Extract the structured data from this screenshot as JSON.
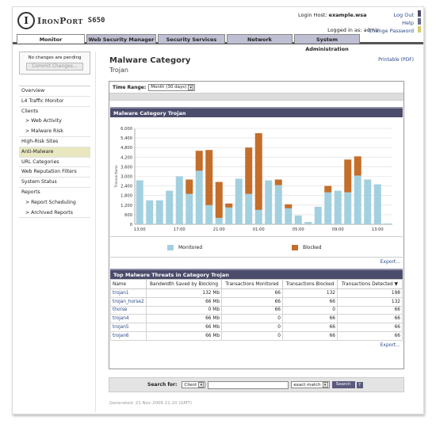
{
  "header": {
    "logo_letter": "I",
    "brand": "IronPort",
    "model": "S650",
    "login_host_label": "Login Host:",
    "login_host": "example.wsa",
    "logged_in_label": "Logged in as:",
    "logged_in_user": "admin",
    "links": {
      "logout": "Log Out",
      "help": "Help",
      "change_password": "Change Password"
    }
  },
  "tabs": [
    "Monitor",
    "Web Security Manager",
    "Security Services",
    "Network",
    "System Administration"
  ],
  "sidebar": {
    "pending_text": "No changes are pending",
    "commit_label": "Commit Changes...",
    "items": [
      {
        "label": "Overview"
      },
      {
        "label": "L4 Traffic Monitor"
      },
      {
        "label": "Clients"
      },
      {
        "label": "> Web Activity"
      },
      {
        "label": "> Malware Risk"
      },
      {
        "label": "High-Risk Sites"
      },
      {
        "label": "Anti-Malware"
      },
      {
        "label": "URL Categories"
      },
      {
        "label": "Web Reputation Filters"
      },
      {
        "label": "System Status"
      },
      {
        "label": "Reports"
      },
      {
        "label": "> Report Scheduling"
      },
      {
        "label": "> Archived Reports"
      }
    ]
  },
  "main": {
    "title": "Malware Category",
    "subtitle": "Trojan",
    "printable": "Printable (PDF)",
    "time_range_label": "Time Range:",
    "time_range_value": "Month (30 days)",
    "chart_section_title": "Malware Category Trojan",
    "table_section_title": "Top Malware Threats in Category Trojan",
    "export_label": "Export..."
  },
  "colors": {
    "monitored": "#a3d0df",
    "blocked": "#c46e2a",
    "section_head": "#4b4b6b",
    "active_nav": "#e8e7c0"
  },
  "chart_data": {
    "type": "bar",
    "stacked": true,
    "ylabel": "Transactions",
    "ylim": [
      0,
      6000
    ],
    "yticks": [
      "0",
      "600",
      "1,200",
      "1,800",
      "2,400",
      "3,000",
      "3,600",
      "4,200",
      "4,800",
      "5,400",
      "6,000"
    ],
    "xtick_labels": [
      "13:00",
      "17:00",
      "21:00",
      "01:00",
      "05:00",
      "09:00",
      "13:00"
    ],
    "grid": true,
    "legend_position": "bottom",
    "series": [
      {
        "name": "Monitored",
        "values": [
          2750,
          1500,
          1500,
          2100,
          3000,
          1900,
          3350,
          1200,
          400,
          1050,
          2850,
          1900,
          900,
          2750,
          2450,
          1000,
          550,
          150,
          1100,
          2000,
          2100,
          2000,
          3050,
          2800,
          2500,
          50
        ]
      },
      {
        "name": "Blocked",
        "values": [
          0,
          0,
          0,
          0,
          0,
          900,
          1250,
          3450,
          2250,
          250,
          0,
          2900,
          4800,
          0,
          350,
          250,
          0,
          0,
          0,
          400,
          0,
          2050,
          1200,
          0,
          0,
          0
        ]
      }
    ]
  },
  "threats_table": {
    "columns": [
      "Name",
      "Bandwidth Saved by Blocking",
      "Transactions Monitored",
      "Transactions Blocked",
      "Transactions Detected ▼"
    ],
    "rows": [
      [
        "trojan1",
        "132 Mb",
        "66",
        "132",
        "198"
      ],
      [
        "trojan_horse2",
        "66 Mb",
        "66",
        "66",
        "132"
      ],
      [
        "thorse",
        "0 Mb",
        "66",
        "0",
        "66"
      ],
      [
        "trojan4",
        "66 Mb",
        "0",
        "66",
        "66"
      ],
      [
        "trojan5",
        "66 Mb",
        "0",
        "66",
        "66"
      ],
      [
        "trojan6",
        "66 Mb",
        "0",
        "66",
        "66"
      ]
    ]
  },
  "search": {
    "label": "Search for:",
    "scope": "Client",
    "query": "",
    "match": "exact match",
    "button": "Search",
    "help": "?"
  },
  "footer": {
    "generated": "Generated: 21 Nov 2006 21:20 (GMT)"
  }
}
